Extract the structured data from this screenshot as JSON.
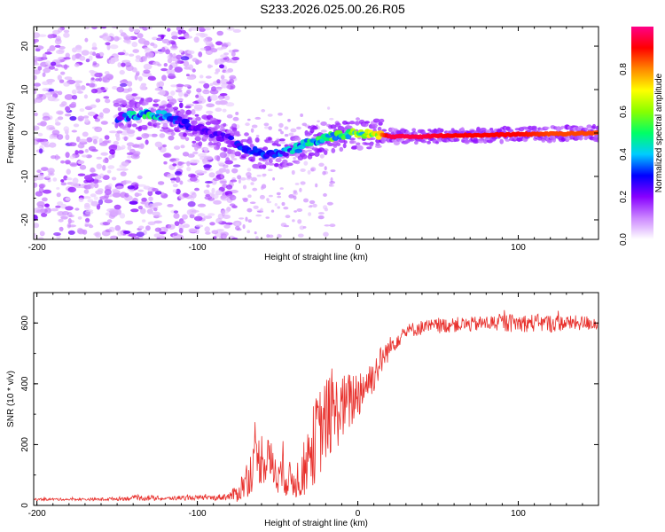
{
  "title": "S233.2026.025.00.26.R05",
  "chart_data": [
    {
      "type": "heatmap",
      "title": "S233.2026.025.00.26.R05",
      "xlabel": "Height of straight line (km)",
      "ylabel": "Frequency (Hz)",
      "xlim": [
        -202,
        150
      ],
      "ylim": [
        -24.5,
        24.5
      ],
      "xticks": [
        -200,
        -100,
        0,
        100
      ],
      "yticks": [
        -20,
        -10,
        0,
        10,
        20
      ],
      "colorbar": {
        "label": "Normalized spectral amplitude",
        "range": [
          0.0,
          1.0
        ],
        "ticks": [
          0.0,
          0.2,
          0.4,
          0.6,
          0.8
        ],
        "tick_labels": [
          "0.0",
          "0.2",
          "0.4",
          "0.6",
          "0.8"
        ],
        "colors": [
          "#ffffff",
          "#cc88ff",
          "#8800ff",
          "#0000ff",
          "#00ccff",
          "#00ff66",
          "#88ff00",
          "#ffff00",
          "#ff8800",
          "#ff0000",
          "#ff0088"
        ]
      },
      "ridge": [
        {
          "x": -150,
          "y": 3.5,
          "v": 0.3
        },
        {
          "x": -140,
          "y": 4.0,
          "v": 0.45
        },
        {
          "x": -130,
          "y": 4.5,
          "v": 0.55
        },
        {
          "x": -120,
          "y": 4.0,
          "v": 0.4
        },
        {
          "x": -110,
          "y": 2.5,
          "v": 0.35
        },
        {
          "x": -100,
          "y": 1.0,
          "v": 0.3
        },
        {
          "x": -90,
          "y": 0.0,
          "v": 0.25
        },
        {
          "x": -80,
          "y": -1.5,
          "v": 0.3
        },
        {
          "x": -70,
          "y": -3.5,
          "v": 0.35
        },
        {
          "x": -60,
          "y": -5.0,
          "v": 0.35
        },
        {
          "x": -50,
          "y": -4.5,
          "v": 0.4
        },
        {
          "x": -40,
          "y": -4.0,
          "v": 0.45
        },
        {
          "x": -30,
          "y": -2.0,
          "v": 0.5
        },
        {
          "x": -20,
          "y": -1.0,
          "v": 0.55
        },
        {
          "x": -10,
          "y": -0.5,
          "v": 0.6
        },
        {
          "x": 0,
          "y": 0.0,
          "v": 0.65
        },
        {
          "x": 10,
          "y": 0.0,
          "v": 0.7
        },
        {
          "x": 20,
          "y": -0.8,
          "v": 0.95
        },
        {
          "x": 40,
          "y": -0.8,
          "v": 0.95
        },
        {
          "x": 60,
          "y": -0.5,
          "v": 0.9
        },
        {
          "x": 80,
          "y": -0.5,
          "v": 0.9
        },
        {
          "x": 100,
          "y": -0.3,
          "v": 0.9
        },
        {
          "x": 120,
          "y": -0.2,
          "v": 0.85
        },
        {
          "x": 150,
          "y": 0.0,
          "v": 0.85
        }
      ]
    },
    {
      "type": "line",
      "xlabel": "Height of straight line (km)",
      "ylabel": "SNR (10 * v/v)",
      "xlim": [
        -202,
        150
      ],
      "ylim": [
        0,
        700
      ],
      "xticks": [
        -200,
        -100,
        0,
        100
      ],
      "yticks": [
        0,
        200,
        400,
        600
      ],
      "series": [
        {
          "name": "SNR",
          "color": "#e8302c",
          "x": [
            -202,
            -190,
            -180,
            -170,
            -160,
            -150,
            -140,
            -130,
            -120,
            -110,
            -100,
            -90,
            -80,
            -75,
            -70,
            -65,
            -60,
            -55,
            -50,
            -45,
            -40,
            -35,
            -30,
            -25,
            -20,
            -15,
            -10,
            -5,
            0,
            5,
            10,
            15,
            20,
            25,
            30,
            35,
            40,
            50,
            60,
            70,
            80,
            90,
            100,
            110,
            120,
            130,
            140,
            150
          ],
          "values": [
            20,
            20,
            20,
            20,
            20,
            22,
            24,
            25,
            22,
            25,
            25,
            25,
            30,
            40,
            80,
            130,
            160,
            140,
            110,
            90,
            80,
            100,
            170,
            230,
            280,
            300,
            320,
            340,
            370,
            400,
            430,
            480,
            520,
            550,
            570,
            580,
            585,
            590,
            595,
            595,
            600,
            600,
            600,
            600,
            598,
            600,
            600,
            600
          ],
          "noise": [
            4,
            4,
            4,
            4,
            5,
            6,
            8,
            10,
            6,
            8,
            8,
            8,
            14,
            30,
            60,
            80,
            90,
            80,
            70,
            60,
            60,
            80,
            120,
            150,
            140,
            130,
            110,
            100,
            90,
            70,
            60,
            50,
            35,
            30,
            25,
            25,
            25,
            25,
            25,
            25,
            25,
            30,
            30,
            30,
            30,
            25,
            25,
            25
          ]
        }
      ]
    }
  ]
}
